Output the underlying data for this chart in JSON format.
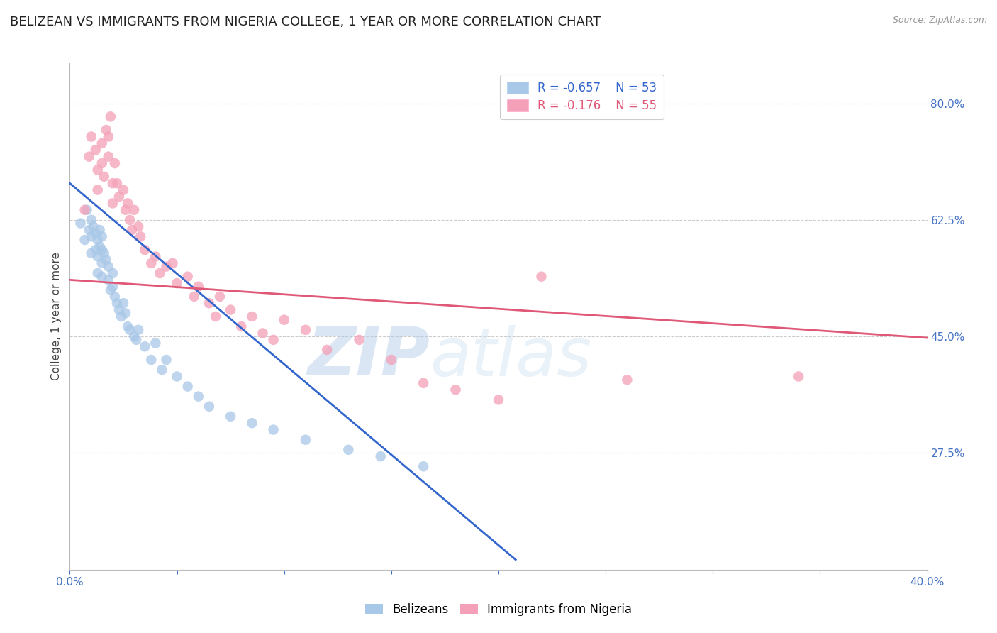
{
  "title": "BELIZEAN VS IMMIGRANTS FROM NIGERIA COLLEGE, 1 YEAR OR MORE CORRELATION CHART",
  "source": "Source: ZipAtlas.com",
  "ylabel": "College, 1 year or more",
  "blue_label": "Belizeans",
  "pink_label": "Immigrants from Nigeria",
  "blue_R": -0.657,
  "blue_N": 53,
  "pink_R": -0.176,
  "pink_N": 55,
  "blue_color": "#a8c8e8",
  "pink_color": "#f4a0b8",
  "blue_line_color": "#3366cc",
  "pink_line_color": "#e05878",
  "xmin": 0.0,
  "xmax": 0.4,
  "ymin": 0.1,
  "ymax": 0.86,
  "yticks": [
    0.275,
    0.45,
    0.625,
    0.8
  ],
  "ytick_labels": [
    "27.5%",
    "45.0%",
    "62.5%",
    "80.0%"
  ],
  "watermark_zip": "ZIP",
  "watermark_atlas": "atlas",
  "blue_x": [
    0.005,
    0.007,
    0.008,
    0.009,
    0.01,
    0.01,
    0.01,
    0.011,
    0.012,
    0.012,
    0.013,
    0.013,
    0.013,
    0.014,
    0.014,
    0.015,
    0.015,
    0.015,
    0.015,
    0.016,
    0.017,
    0.018,
    0.018,
    0.019,
    0.02,
    0.02,
    0.021,
    0.022,
    0.023,
    0.024,
    0.025,
    0.026,
    0.027,
    0.028,
    0.03,
    0.031,
    0.032,
    0.035,
    0.038,
    0.04,
    0.043,
    0.045,
    0.05,
    0.055,
    0.06,
    0.065,
    0.075,
    0.085,
    0.095,
    0.11,
    0.13,
    0.145,
    0.165
  ],
  "blue_y": [
    0.62,
    0.595,
    0.64,
    0.61,
    0.625,
    0.6,
    0.575,
    0.615,
    0.605,
    0.58,
    0.595,
    0.57,
    0.545,
    0.61,
    0.585,
    0.6,
    0.58,
    0.56,
    0.54,
    0.575,
    0.565,
    0.555,
    0.535,
    0.52,
    0.545,
    0.525,
    0.51,
    0.5,
    0.49,
    0.48,
    0.5,
    0.485,
    0.465,
    0.46,
    0.45,
    0.445,
    0.46,
    0.435,
    0.415,
    0.44,
    0.4,
    0.415,
    0.39,
    0.375,
    0.36,
    0.345,
    0.33,
    0.32,
    0.31,
    0.295,
    0.28,
    0.27,
    0.255
  ],
  "pink_x": [
    0.007,
    0.009,
    0.01,
    0.012,
    0.013,
    0.013,
    0.015,
    0.015,
    0.016,
    0.017,
    0.018,
    0.018,
    0.019,
    0.02,
    0.02,
    0.021,
    0.022,
    0.023,
    0.025,
    0.026,
    0.027,
    0.028,
    0.029,
    0.03,
    0.032,
    0.033,
    0.035,
    0.038,
    0.04,
    0.042,
    0.045,
    0.048,
    0.05,
    0.055,
    0.058,
    0.06,
    0.065,
    0.068,
    0.07,
    0.075,
    0.08,
    0.085,
    0.09,
    0.095,
    0.1,
    0.11,
    0.12,
    0.135,
    0.15,
    0.165,
    0.18,
    0.2,
    0.22,
    0.26,
    0.34
  ],
  "pink_y": [
    0.64,
    0.72,
    0.75,
    0.73,
    0.7,
    0.67,
    0.74,
    0.71,
    0.69,
    0.76,
    0.72,
    0.75,
    0.78,
    0.68,
    0.65,
    0.71,
    0.68,
    0.66,
    0.67,
    0.64,
    0.65,
    0.625,
    0.61,
    0.64,
    0.615,
    0.6,
    0.58,
    0.56,
    0.57,
    0.545,
    0.555,
    0.56,
    0.53,
    0.54,
    0.51,
    0.525,
    0.5,
    0.48,
    0.51,
    0.49,
    0.465,
    0.48,
    0.455,
    0.445,
    0.475,
    0.46,
    0.43,
    0.445,
    0.415,
    0.38,
    0.37,
    0.355,
    0.54,
    0.385,
    0.39
  ],
  "blue_line_x": [
    0.0,
    0.208
  ],
  "blue_line_y": [
    0.68,
    0.115
  ],
  "pink_line_x": [
    0.0,
    0.4
  ],
  "pink_line_y": [
    0.535,
    0.448
  ],
  "background_color": "#ffffff",
  "grid_color": "#cccccc",
  "title_fontsize": 13,
  "tick_fontsize": 11,
  "tick_color": "#4472c4",
  "ylabel_fontsize": 11,
  "source_fontsize": 9
}
